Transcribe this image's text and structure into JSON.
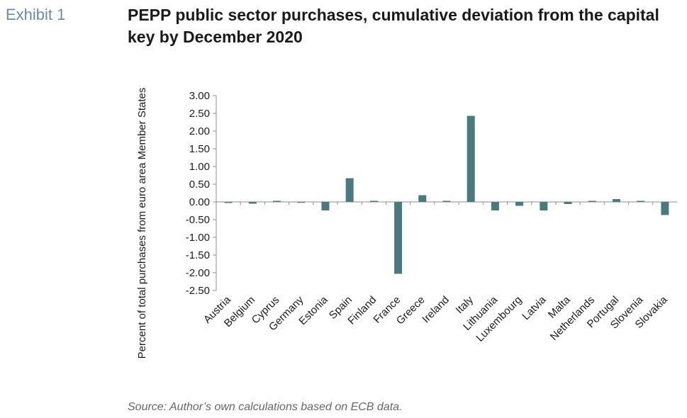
{
  "header": {
    "exhibit_label": "Exhibit 1",
    "title": "PEPP public sector purchases, cumulative deviation from the capital key by December 2020"
  },
  "footer": {
    "source": "Source: Author’s own calculations based on ECB data."
  },
  "colors": {
    "bar": "#4a7a80",
    "axis": "#8c8c8c",
    "exhibit": "#6f8aa5"
  },
  "chart_data": {
    "type": "bar",
    "title": "",
    "xlabel": "",
    "ylabel": "Percent of total purchases from euro area Member States",
    "ylim": [
      -2.5,
      3.0
    ],
    "yticks": [
      "3.00",
      "2.50",
      "2.00",
      "1.50",
      "1.00",
      "0.50",
      "0.00",
      "-0.50",
      "-1.00",
      "-1.50",
      "-2.00",
      "-2.50"
    ],
    "grid": false,
    "categories": [
      "Austria",
      "Belgium",
      "Cyprus",
      "Germany",
      "Estonia",
      "Spain",
      "Finland",
      "France",
      "Greece",
      "Ireland",
      "Italy",
      "Lithuania",
      "Luxembourg",
      "Latvia",
      "Malta",
      "Netherlands",
      "Portugal",
      "Slovenia",
      "Slovakia"
    ],
    "values": [
      -0.03,
      -0.05,
      0.03,
      -0.01,
      -0.24,
      0.67,
      0.03,
      -2.03,
      0.19,
      0.03,
      2.43,
      -0.24,
      -0.11,
      -0.24,
      -0.06,
      0.03,
      0.08,
      0.03,
      -0.37
    ]
  }
}
